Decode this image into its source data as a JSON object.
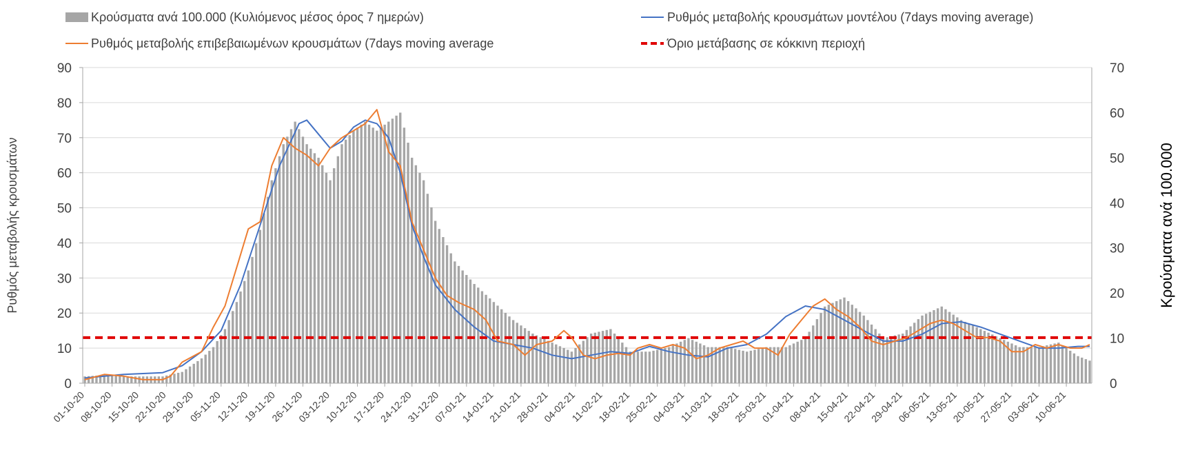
{
  "chart_data": {
    "type": "bar+line",
    "title": "",
    "xlabel": "",
    "ylabel_left": "Ρυθμός μεταβολής κρουσμάτων",
    "ylabel_right": "Κρούσματα ανά 100.000",
    "ylim_left": [
      0,
      90
    ],
    "ylim_right": [
      0,
      70
    ],
    "yticks_left": [
      "0",
      "10",
      "20",
      "30",
      "40",
      "50",
      "60",
      "70",
      "80",
      "90"
    ],
    "yticks_right": [
      "0",
      "10",
      "20",
      "30",
      "40",
      "50",
      "60",
      "70"
    ],
    "grid": true,
    "legend_position": "top",
    "x_tick_labels": [
      "01-10-20",
      "08-10-20",
      "15-10-20",
      "22-10-20",
      "29-10-20",
      "05-11-20",
      "12-11-20",
      "19-11-20",
      "26-11-20",
      "03-12-20",
      "10-12-20",
      "17-12-20",
      "24-12-20",
      "31-12-20",
      "07-01-21",
      "14-01-21",
      "21-01-21",
      "28-01-21",
      "04-02-21",
      "11-02-21",
      "18-02-21",
      "25-02-21",
      "04-03-21",
      "11-03-21",
      "18-03-21",
      "25-03-21",
      "01-04-21",
      "08-04-21",
      "15-04-21",
      "22-04-21",
      "29-04-21",
      "06-05-21",
      "13-05-21",
      "20-05-21",
      "27-05-21",
      "03-06-21",
      "10-06-21"
    ],
    "x_tick_step_days": 7,
    "legend": {
      "bars": "Κρούσματα ανά 100.000 (Κυλιόμενος μέσος όρος 7 ημερών)",
      "model": "Ρυθμός μεταβολής κρουσμάτων μοντέλου (7days moving average)",
      "confirmed": "Ρυθμός μεταβολής επιβεβαιωμένων κρουσμάτων (7days moving average",
      "threshold": "Όριο μετάβασης σε κόκκινη περιοχή"
    },
    "colors": {
      "bars": "#a6a6a6",
      "model": "#4472c4",
      "confirmed": "#ed7d31",
      "threshold": "#e00000",
      "grid": "#d9d9d9",
      "text": "#404040"
    },
    "threshold_value_left": 13,
    "threshold_value_right": 10,
    "series": [
      {
        "name": "Κρούσματα ανά 100.000 (Κυλιόμενος μέσος όρος 7 ημερών)",
        "axis": "right",
        "kind": "bar",
        "day_index": [
          0,
          5,
          10,
          15,
          20,
          25,
          30,
          33,
          36,
          39,
          42,
          45,
          48,
          51,
          54,
          57,
          60,
          63,
          66,
          69,
          72,
          75,
          78,
          81,
          84,
          87,
          90,
          95,
          100,
          105,
          110,
          115,
          120,
          125,
          130,
          135,
          140,
          145,
          150,
          155,
          160,
          165,
          170,
          175,
          180,
          185,
          190,
          195,
          200,
          205,
          210,
          215,
          220,
          225,
          230,
          235,
          240,
          245,
          250,
          255,
          258
        ],
        "values": [
          1.5,
          1.8,
          1.5,
          1.5,
          1.5,
          2.5,
          5.5,
          8,
          12,
          18,
          25,
          34,
          45,
          53,
          58,
          53,
          50,
          45,
          53,
          56,
          58,
          56,
          58,
          60,
          50,
          45,
          36,
          27,
          22,
          18,
          14,
          11,
          9,
          7,
          11,
          12,
          7,
          7,
          8,
          10,
          8,
          8,
          7,
          8,
          8,
          10,
          17,
          19,
          15,
          10,
          11,
          15,
          17,
          14,
          12,
          10,
          8,
          8,
          9,
          6,
          5
        ]
      },
      {
        "name": "Ρυθμός μεταβολής κρουσμάτων μοντέλου (7days moving average)",
        "axis": "left",
        "kind": "line",
        "day_index": [
          0,
          10,
          20,
          25,
          30,
          35,
          40,
          45,
          50,
          55,
          57,
          60,
          63,
          66,
          69,
          72,
          75,
          78,
          81,
          84,
          87,
          90,
          95,
          100,
          105,
          110,
          115,
          120,
          125,
          130,
          135,
          140,
          145,
          150,
          155,
          160,
          165,
          170,
          175,
          180,
          185,
          190,
          195,
          200,
          205,
          210,
          215,
          220,
          225,
          230,
          235,
          240,
          245,
          250,
          255,
          258
        ],
        "values": [
          1.5,
          2.5,
          3,
          5,
          9,
          15,
          28,
          45,
          62,
          74,
          75,
          71,
          67,
          69,
          73,
          75,
          74,
          70,
          60,
          45,
          36,
          28,
          21,
          16,
          12,
          11,
          10,
          8,
          7,
          8,
          9,
          8.5,
          10.5,
          9,
          8,
          7.5,
          10,
          11,
          14,
          19,
          22,
          21,
          18,
          15,
          12,
          12,
          14,
          17,
          17.5,
          16,
          14,
          12,
          10,
          10,
          10.5,
          10.5
        ]
      },
      {
        "name": "Ρυθμός μεταβολής επιβεβαιωμένων κρουσμάτων (7days moving average",
        "axis": "left",
        "kind": "line",
        "day_index": [
          0,
          5,
          10,
          15,
          20,
          22,
          25,
          30,
          33,
          36,
          39,
          42,
          45,
          48,
          51,
          54,
          57,
          60,
          63,
          66,
          69,
          72,
          75,
          78,
          81,
          84,
          87,
          90,
          93,
          96,
          100,
          103,
          106,
          110,
          113,
          116,
          120,
          123,
          125,
          128,
          131,
          134,
          137,
          140,
          142,
          145,
          148,
          151,
          154,
          157,
          160,
          163,
          166,
          169,
          172,
          175,
          178,
          181,
          184,
          187,
          190,
          193,
          196,
          199,
          202,
          205,
          208,
          211,
          214,
          217,
          220,
          223,
          226,
          229,
          232,
          235,
          238,
          241,
          244,
          247,
          250,
          253,
          256,
          258
        ],
        "values": [
          1,
          2.5,
          2,
          1,
          1,
          2,
          6,
          9,
          16,
          22,
          33,
          44,
          46,
          62,
          70,
          67,
          65,
          62,
          67,
          70,
          72,
          74,
          78,
          66,
          62,
          46,
          38,
          30,
          25,
          23,
          21,
          18,
          12,
          11,
          8,
          11,
          12,
          15,
          13,
          8,
          7,
          8,
          8.5,
          8,
          10,
          11,
          10,
          11,
          10,
          7,
          8,
          10,
          11,
          12,
          10,
          10,
          8,
          14,
          18,
          22,
          24,
          21,
          19,
          16,
          12,
          11,
          12,
          13,
          15,
          17,
          18,
          17,
          15,
          13,
          13,
          12,
          9,
          9,
          11,
          10,
          11,
          10,
          10,
          11
        ]
      }
    ]
  }
}
